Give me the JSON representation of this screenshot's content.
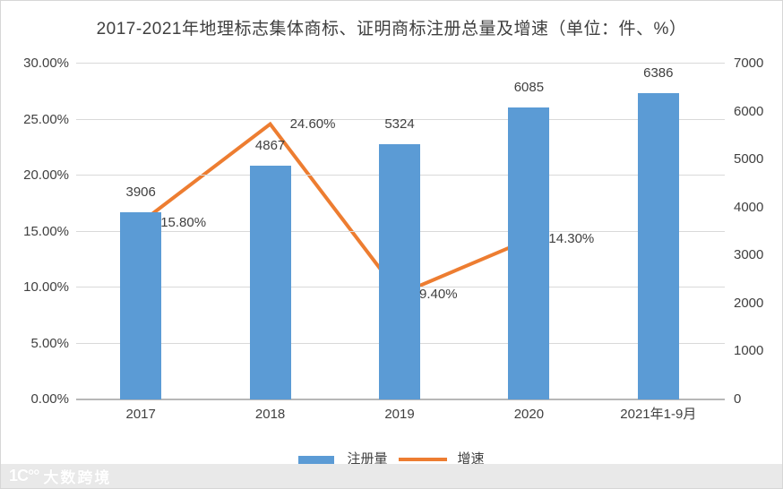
{
  "chart_data": {
    "type": "combo-bar-line",
    "title": "2017-2021年地理标志集体商标、证明商标注册总量及增速（单位：件、%）",
    "categories": [
      "2017",
      "2018",
      "2019",
      "2020",
      "2021年1-9月"
    ],
    "series": [
      {
        "name": "注册量",
        "type": "bar",
        "axis": "right",
        "color": "#5b9bd5",
        "values": [
          3906,
          4867,
          5324,
          6085,
          6386
        ],
        "labels": [
          "3906",
          "4867",
          "5324",
          "6085",
          "6386"
        ]
      },
      {
        "name": "增速",
        "type": "line",
        "axis": "left",
        "color": "#ed7d31",
        "values": [
          15.8,
          24.6,
          9.4,
          14.3,
          null
        ],
        "labels": [
          "15.80%",
          "24.60%",
          "9.40%",
          "14.30%"
        ]
      }
    ],
    "left_axis": {
      "min": 0,
      "max": 30,
      "step": 5,
      "tick_labels": [
        "30.00%",
        "25.00%",
        "20.00%",
        "15.00%",
        "10.00%",
        "5.00%",
        "0.00%"
      ]
    },
    "right_axis": {
      "min": 0,
      "max": 7000,
      "step": 1000,
      "tick_labels": [
        "7000",
        "6000",
        "5000",
        "4000",
        "3000",
        "2000",
        "1000",
        "0"
      ]
    },
    "grid": true,
    "legend_position": "bottom"
  },
  "watermark": {
    "logo_text": "1C°°",
    "brand": "大数跨境"
  }
}
